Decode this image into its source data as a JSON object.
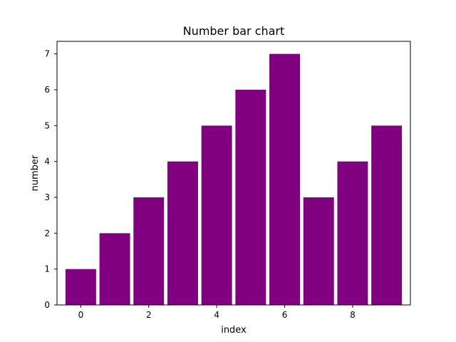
{
  "chart_data": {
    "type": "bar",
    "title": "Number bar chart",
    "xlabel": "index",
    "ylabel": "number",
    "x": [
      0,
      1,
      2,
      3,
      4,
      5,
      6,
      7,
      8,
      9
    ],
    "values": [
      1,
      2,
      3,
      4,
      5,
      6,
      7,
      3,
      4,
      5
    ],
    "xlim": [
      -0.7,
      9.7
    ],
    "ylim": [
      0,
      7.35
    ],
    "xticks": [
      0,
      2,
      4,
      6,
      8
    ],
    "yticks": [
      0,
      1,
      2,
      3,
      4,
      5,
      6,
      7
    ],
    "bar_color": "#800080",
    "grid": false,
    "legend": "none"
  }
}
